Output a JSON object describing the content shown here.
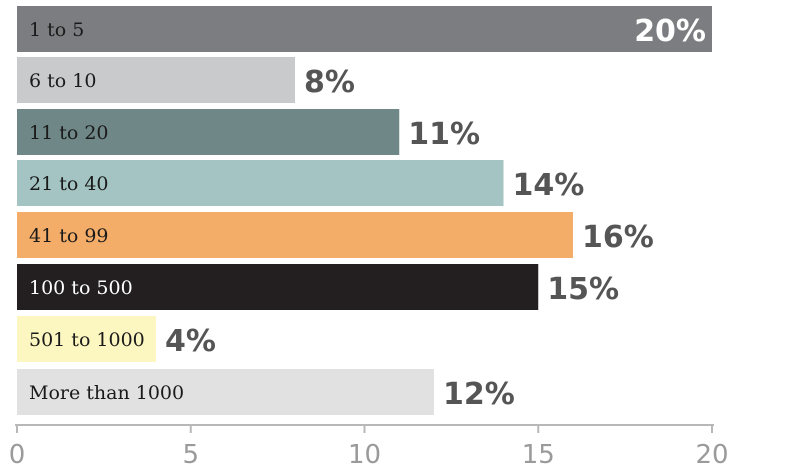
{
  "chart_data": {
    "type": "bar",
    "orientation": "horizontal",
    "categories": [
      "1 to 5",
      "6 to 10",
      "11 to 20",
      "21 to 40",
      "41 to 99",
      "100 to 500",
      "501 to 1000",
      "More than 1000"
    ],
    "values": [
      20,
      8,
      11,
      14,
      16,
      15,
      4,
      12
    ],
    "value_labels": [
      "20%",
      "8%",
      "11%",
      "14%",
      "16%",
      "15%",
      "4%",
      "12%"
    ],
    "colors": [
      "#7c7d80",
      "#c9cacc",
      "#6f8887",
      "#a3c4c3",
      "#f3ad68",
      "#231f20",
      "#fcf6c0",
      "#e1e1e1"
    ],
    "label_colors": [
      "#1a1a1a",
      "#1a1a1a",
      "#1a1a1a",
      "#1a1a1a",
      "#1a1a1a",
      "#ffffff",
      "#1a1a1a",
      "#1a1a1a"
    ],
    "xlim": [
      0,
      20
    ],
    "xticks": [
      0,
      5,
      10,
      15,
      20
    ],
    "tick_labels": [
      "0",
      "5",
      "10",
      "15",
      "20"
    ],
    "grid": false,
    "legend": "none"
  }
}
